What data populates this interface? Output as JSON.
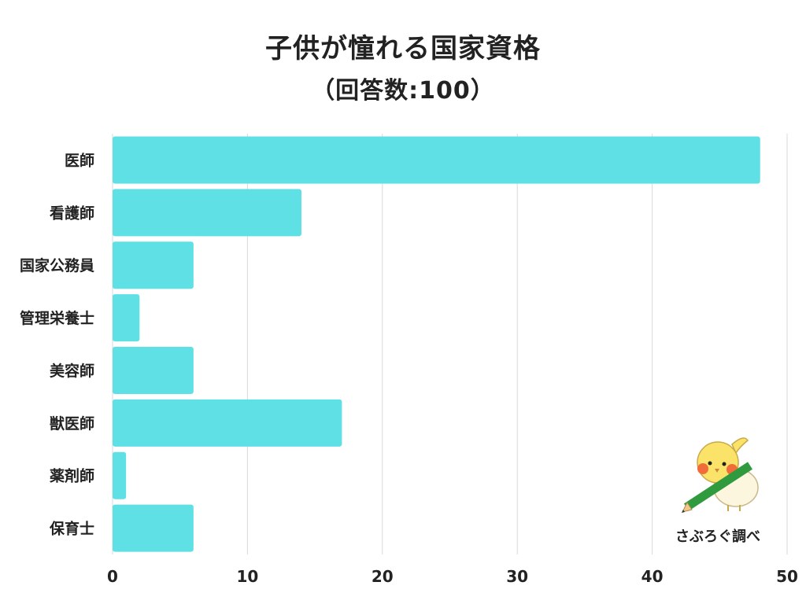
{
  "header": {
    "title": "子供が憧れる国家資格",
    "subtitle": "（回答数:100）"
  },
  "credit": {
    "text": "さぶろぐ調べ",
    "mascot_icon": "bird-with-pencil-icon"
  },
  "colors": {
    "bar": "#5ee0e4",
    "grid": "#d9d9d9",
    "text": "#222222",
    "mascot_body": "#fbe36a",
    "mascot_cheek": "#f26b3a",
    "pencil": "#2f9a3e"
  },
  "chart_data": {
    "type": "bar",
    "orientation": "horizontal",
    "title": "子供が憧れる国家資格",
    "subtitle": "（回答数:100）",
    "xlabel": "",
    "ylabel": "",
    "categories": [
      "医師",
      "看護師",
      "国家公務員",
      "管理栄養士",
      "美容師",
      "獣医師",
      "薬剤師",
      "保育士"
    ],
    "values": [
      48,
      14,
      6,
      2,
      6,
      17,
      1,
      6
    ],
    "xlim": [
      0,
      50
    ],
    "xticks": [
      0,
      10,
      20,
      30,
      40,
      50
    ],
    "grid": "vertical",
    "legend": "none"
  }
}
